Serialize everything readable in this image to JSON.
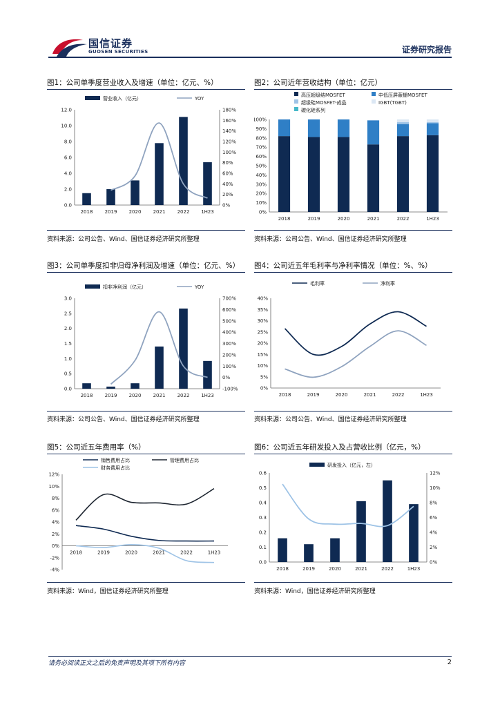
{
  "header": {
    "brand_cn": "国信证券",
    "brand_en": "GUOSEN SECURITIES",
    "report_type": "证券研究报告"
  },
  "footer": {
    "disclaimer": "请务必阅读正文之后的免责声明及其项下所有内容",
    "page_number": "2"
  },
  "colors": {
    "navy": "#0f2a52",
    "blue": "#2f7fc6",
    "gray_line": "#8fa3bf",
    "light_blue": "#9ec3e6",
    "teal": "#45b8c9"
  },
  "figures": [
    {
      "title": "图1：公司单季度营业收入及增速（单位：亿元、%）",
      "source": "资料来源：公司公告、Wind、国信证券经济研究所整理"
    },
    {
      "title": "图2：公司近年营收结构（单位：亿元）",
      "source": "资料来源：公司公告、Wind、国信证券经济研究所整理"
    },
    {
      "title": "图3：公司单季度扣非归母净利润及增速（单位：亿元、%）",
      "source": "资料来源：公司公告、Wind、国信证券经济研究所整理"
    },
    {
      "title": "图4：公司近五年毛利率与净利率情况（单位：%、%）",
      "source": "资料来源：公司公告、Wind、国信证券经济研究所整理"
    },
    {
      "title": "图5：公司近五年费用率（%）",
      "source": "资料来源：Wind，国信证券经济研究所整理"
    },
    {
      "title": "图6：公司近五年研发投入及占营收比例（亿元，%）",
      "source": "资料来源：Wind，国信证券经济研究所整理"
    }
  ],
  "chart_data": [
    {
      "type": "bar",
      "categories": [
        "2018",
        "2019",
        "2020",
        "2021",
        "2022",
        "1H23"
      ],
      "series": [
        {
          "name": "营业收入（亿元）",
          "kind": "bar",
          "axis": "left",
          "values": [
            1.5,
            2.0,
            3.1,
            7.8,
            11.1,
            5.4
          ]
        },
        {
          "name": "YOY",
          "kind": "line",
          "axis": "right",
          "values": [
            null,
            28,
            55,
            155,
            40,
            13
          ]
        }
      ],
      "yticks_left": [
        "0.0",
        "2.0",
        "4.0",
        "6.0",
        "8.0",
        "10.0",
        "12.0"
      ],
      "yticks_right": [
        "0%",
        "20%",
        "40%",
        "60%",
        "80%",
        "100%",
        "120%",
        "140%",
        "160%",
        "180%"
      ],
      "ylim_left": [
        0,
        12
      ],
      "ylim_right": [
        0,
        180
      ]
    },
    {
      "type": "bar",
      "stacked": true,
      "categories": [
        "2018",
        "2019",
        "2020",
        "2021",
        "2022",
        "1H23"
      ],
      "series": [
        {
          "name": "高压超级结MOSFET",
          "values": [
            82,
            81,
            81,
            73,
            82,
            83
          ]
        },
        {
          "name": "中低压屏蔽栅MOSFET",
          "values": [
            18,
            19,
            19,
            26,
            13,
            13
          ]
        },
        {
          "name": "超级硅MOSFET-成品",
          "values": [
            0,
            0,
            0,
            0,
            2,
            1
          ]
        },
        {
          "name": "IGBT(TGBT)",
          "values": [
            0,
            0,
            0,
            0,
            3,
            3
          ]
        },
        {
          "name": "碳化硅系列",
          "values": [
            0,
            0,
            0,
            0,
            0,
            0
          ]
        }
      ],
      "yticks": [
        "0%",
        "10%",
        "20%",
        "30%",
        "40%",
        "50%",
        "60%",
        "70%",
        "80%",
        "90%",
        "100%"
      ],
      "ylim": [
        0,
        100
      ]
    },
    {
      "type": "bar",
      "categories": [
        "2018",
        "2019",
        "2020",
        "2021",
        "2022",
        "1H23"
      ],
      "series": [
        {
          "name": "扣非净利润（亿元）",
          "kind": "bar",
          "axis": "left",
          "values": [
            0.18,
            0.07,
            0.18,
            1.4,
            2.66,
            0.92
          ]
        },
        {
          "name": "YOY",
          "kind": "line",
          "axis": "right",
          "values": [
            null,
            -60,
            150,
            580,
            100,
            0
          ]
        }
      ],
      "yticks_left": [
        "0.0",
        "0.5",
        "1.0",
        "1.5",
        "2.0",
        "2.5",
        "3.0"
      ],
      "yticks_right": [
        "-100%",
        "0%",
        "100%",
        "200%",
        "300%",
        "400%",
        "500%",
        "600%",
        "700%"
      ],
      "ylim_left": [
        0,
        3
      ],
      "ylim_right": [
        -100,
        700
      ]
    },
    {
      "type": "line",
      "categories": [
        "2018",
        "2019",
        "2020",
        "2021",
        "2022",
        "1H23"
      ],
      "series": [
        {
          "name": "毛利率",
          "values": [
            26.5,
            15,
            18.5,
            28.5,
            34,
            27.5
          ]
        },
        {
          "name": "净利率",
          "values": [
            8.5,
            4.8,
            9.5,
            18.5,
            25.5,
            19
          ]
        }
      ],
      "yticks": [
        "0%",
        "5%",
        "10%",
        "15%",
        "20%",
        "25%",
        "30%",
        "35%",
        "40%"
      ],
      "ylim": [
        0,
        40
      ]
    },
    {
      "type": "line",
      "categories": [
        "2018",
        "2019",
        "2020",
        "2021",
        "2022",
        "1H23"
      ],
      "series": [
        {
          "name": "销售费用占比",
          "values": [
            3.4,
            2.8,
            1.6,
            0.9,
            0.8,
            0.8
          ]
        },
        {
          "name": "管理费用占比",
          "values": [
            4.3,
            8.6,
            7.3,
            7.2,
            7.0,
            9.6
          ]
        },
        {
          "name": "财务费用占比",
          "values": [
            0.0,
            -0.3,
            0.2,
            -0.4,
            -2.5,
            -2.8
          ]
        }
      ],
      "yticks": [
        "-4%",
        "-2%",
        "0%",
        "2%",
        "4%",
        "6%",
        "8%",
        "10%",
        "12%"
      ],
      "ylim": [
        -4,
        12
      ]
    },
    {
      "type": "bar",
      "categories": [
        "2018",
        "2019",
        "2020",
        "2021",
        "2022",
        "1H23"
      ],
      "series": [
        {
          "name": "研发投入（亿元，左）",
          "kind": "bar",
          "axis": "left",
          "values": [
            0.16,
            0.12,
            0.16,
            0.41,
            0.55,
            0.39
          ]
        },
        {
          "name": "研发占比",
          "kind": "line",
          "axis": "right",
          "values": [
            10.5,
            5.8,
            5.1,
            5.2,
            4.9,
            7.5
          ]
        }
      ],
      "yticks_left": [
        "0.0",
        "0.1",
        "0.2",
        "0.3",
        "0.4",
        "0.5",
        "0.6"
      ],
      "yticks_right": [
        "0%",
        "2%",
        "4%",
        "6%",
        "8%",
        "10%",
        "12%"
      ],
      "ylim_left": [
        0,
        0.6
      ],
      "ylim_right": [
        0,
        12
      ]
    }
  ]
}
